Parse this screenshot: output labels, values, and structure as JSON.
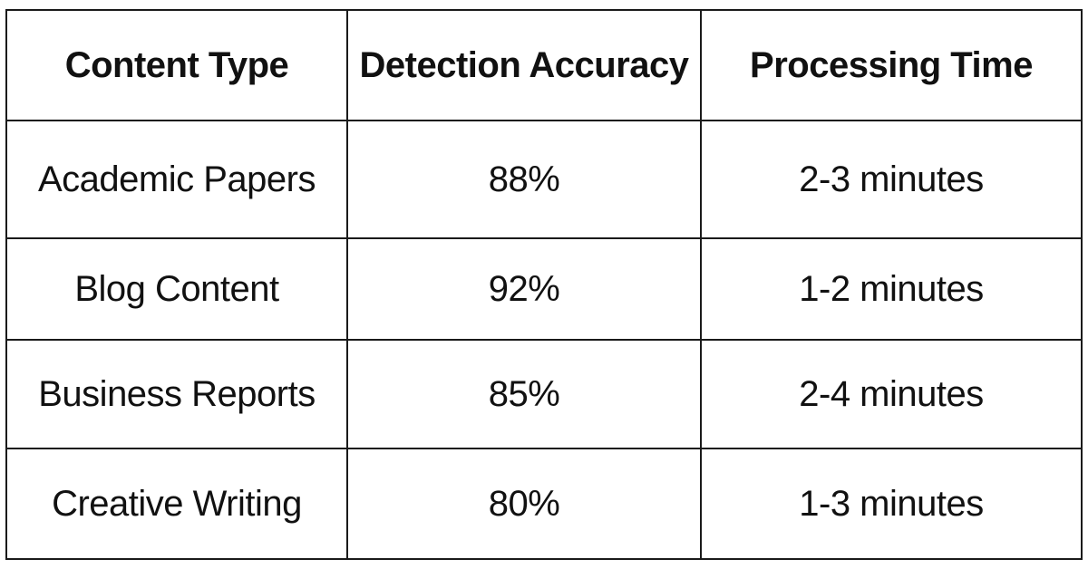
{
  "table": {
    "headers": [
      "Content Type",
      "Detection Accuracy",
      "Processing Time"
    ],
    "rows": [
      [
        "Academic Papers",
        "88%",
        "2-3 minutes"
      ],
      [
        "Blog Content",
        "92%",
        "1-2 minutes"
      ],
      [
        "Business Reports",
        "85%",
        "2-4 minutes"
      ],
      [
        "Creative Writing",
        "80%",
        "1-3 minutes"
      ]
    ]
  }
}
